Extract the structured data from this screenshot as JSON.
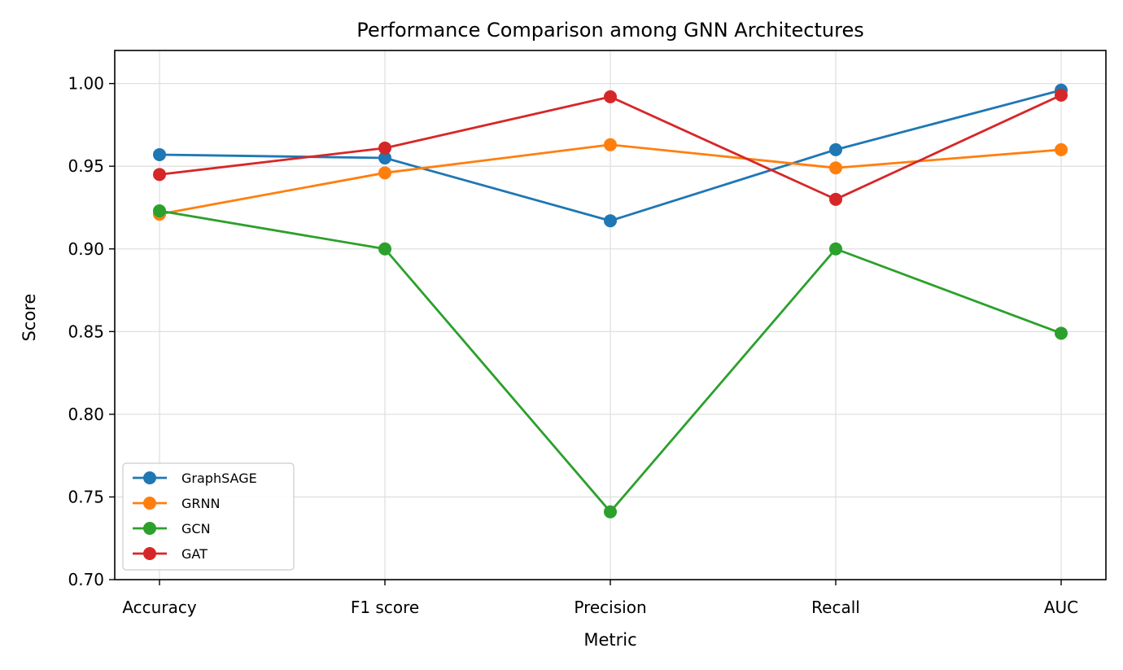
{
  "chart_data": {
    "type": "line",
    "title": "Performance Comparison among GNN Architectures",
    "xlabel": "Metric",
    "ylabel": "Score",
    "categories": [
      "Accuracy",
      "F1 score",
      "Precision",
      "Recall",
      "AUC"
    ],
    "ylim": [
      0.7,
      1.02
    ],
    "yticks": [
      "0.70",
      "0.75",
      "0.80",
      "0.85",
      "0.90",
      "0.95",
      "1.00"
    ],
    "grid": true,
    "legend_position": "lower-left",
    "series": [
      {
        "name": "GraphSAGE",
        "color": "#1f77b4",
        "values": [
          0.957,
          0.955,
          0.917,
          0.96,
          0.996
        ]
      },
      {
        "name": "GRNN",
        "color": "#ff7f0e",
        "values": [
          0.921,
          0.946,
          0.963,
          0.949,
          0.96
        ]
      },
      {
        "name": "GCN",
        "color": "#2ca02c",
        "values": [
          0.923,
          0.9,
          0.741,
          0.9,
          0.849
        ]
      },
      {
        "name": "GAT",
        "color": "#d62728",
        "values": [
          0.945,
          0.961,
          0.992,
          0.93,
          0.993
        ]
      }
    ]
  }
}
